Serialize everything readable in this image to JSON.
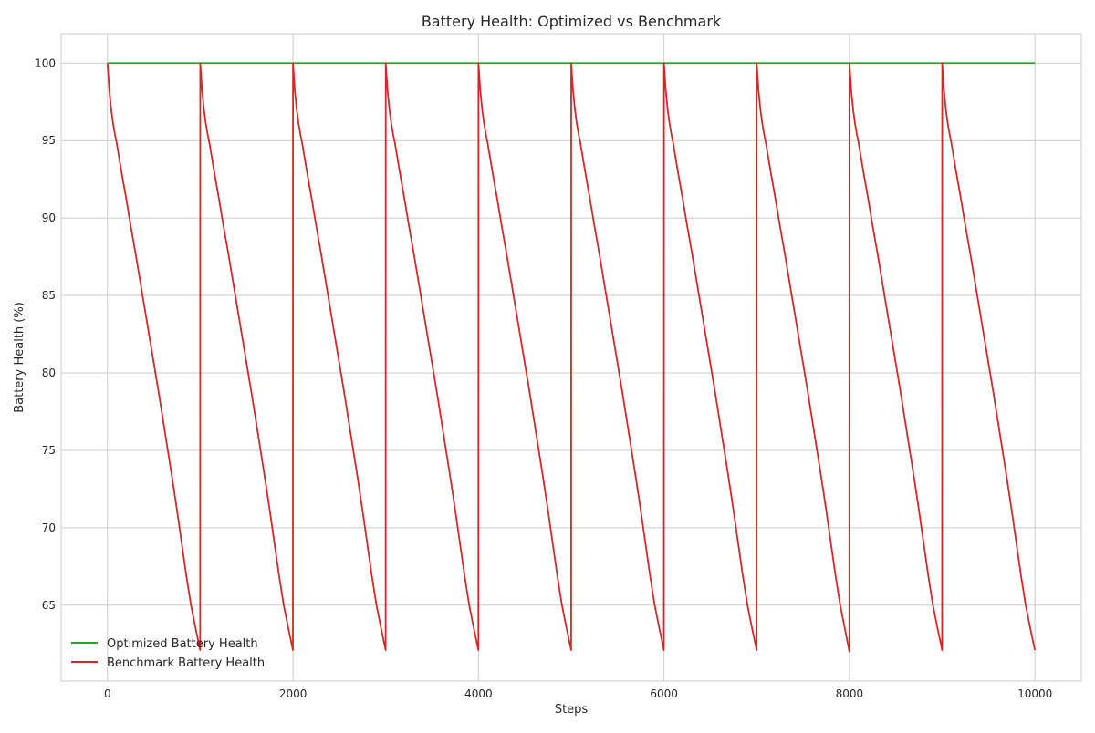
{
  "chart_data": {
    "type": "line",
    "title": "Battery Health: Optimized vs Benchmark",
    "xlabel": "Steps",
    "ylabel": "Battery Health (%)",
    "xlim": [
      -500,
      10500
    ],
    "ylim": [
      60.1,
      101.9
    ],
    "xticks": [
      0,
      2000,
      4000,
      6000,
      8000,
      10000
    ],
    "yticks": [
      65,
      70,
      75,
      80,
      85,
      90,
      95,
      100
    ],
    "grid": true,
    "legend_position": "lower-left",
    "series": [
      {
        "name": "Optimized Battery Health",
        "color": "#2ca02c",
        "x": [
          0,
          10000
        ],
        "y": [
          100,
          100
        ]
      },
      {
        "name": "Benchmark Battery Health",
        "color": "#d62728",
        "x": [
          0,
          20,
          40,
          60,
          80,
          100,
          150,
          200,
          250,
          300,
          350,
          400,
          450,
          500,
          550,
          600,
          650,
          700,
          750,
          800,
          850,
          900,
          950,
          999,
          1000,
          1020,
          1040,
          1060,
          1080,
          1100,
          1150,
          1200,
          1250,
          1300,
          1350,
          1400,
          1450,
          1500,
          1550,
          1600,
          1650,
          1700,
          1750,
          1800,
          1850,
          1900,
          1950,
          1999,
          2000,
          2020,
          2040,
          2060,
          2080,
          2100,
          2150,
          2200,
          2250,
          2300,
          2350,
          2400,
          2450,
          2500,
          2550,
          2600,
          2650,
          2700,
          2750,
          2800,
          2850,
          2900,
          2950,
          2999,
          3000,
          3020,
          3040,
          3060,
          3080,
          3100,
          3150,
          3200,
          3250,
          3300,
          3350,
          3400,
          3450,
          3500,
          3550,
          3600,
          3650,
          3700,
          3750,
          3800,
          3850,
          3900,
          3950,
          3999,
          4000,
          4020,
          4040,
          4060,
          4080,
          4100,
          4150,
          4200,
          4250,
          4300,
          4350,
          4400,
          4450,
          4500,
          4550,
          4600,
          4650,
          4700,
          4750,
          4800,
          4850,
          4900,
          4950,
          4999,
          5000,
          5020,
          5040,
          5060,
          5080,
          5100,
          5150,
          5200,
          5250,
          5300,
          5350,
          5400,
          5450,
          5500,
          5550,
          5600,
          5650,
          5700,
          5750,
          5800,
          5850,
          5900,
          5950,
          5999,
          6000,
          6020,
          6040,
          6060,
          6080,
          6100,
          6150,
          6200,
          6250,
          6300,
          6350,
          6400,
          6450,
          6500,
          6550,
          6600,
          6650,
          6700,
          6750,
          6800,
          6850,
          6900,
          6950,
          6999,
          7000,
          7020,
          7040,
          7060,
          7080,
          7100,
          7150,
          7200,
          7250,
          7300,
          7350,
          7400,
          7450,
          7500,
          7550,
          7600,
          7650,
          7700,
          7750,
          7800,
          7850,
          7900,
          7950,
          7999,
          8000,
          8020,
          8040,
          8060,
          8080,
          8100,
          8150,
          8200,
          8250,
          8300,
          8350,
          8400,
          8450,
          8500,
          8550,
          8600,
          8650,
          8700,
          8750,
          8800,
          8850,
          8900,
          8950,
          8999,
          9000,
          9020,
          9040,
          9060,
          9080,
          9100,
          9150,
          9200,
          9250,
          9300,
          9350,
          9400,
          9450,
          9500,
          9550,
          9600,
          9650,
          9700,
          9750,
          9800,
          9850,
          9900,
          9950,
          9999
        ],
        "y": [
          100,
          98.2,
          97.0,
          96.1,
          95.4,
          94.8,
          93.0,
          91.3,
          89.5,
          87.8,
          86.0,
          84.2,
          82.4,
          80.6,
          78.8,
          76.9,
          75.0,
          73.1,
          71.1,
          69.0,
          66.9,
          65.0,
          63.5,
          62.1,
          100,
          98.2,
          97.0,
          96.1,
          95.4,
          94.8,
          93.0,
          91.3,
          89.5,
          87.8,
          86.0,
          84.2,
          82.4,
          80.6,
          78.8,
          76.9,
          75.0,
          73.1,
          71.1,
          69.0,
          66.9,
          65.0,
          63.5,
          62.1,
          100,
          98.2,
          97.0,
          96.1,
          95.4,
          94.8,
          93.0,
          91.3,
          89.5,
          87.8,
          86.0,
          84.2,
          82.4,
          80.6,
          78.8,
          76.9,
          75.0,
          73.1,
          71.1,
          69.0,
          66.9,
          65.0,
          63.5,
          62.1,
          100,
          98.2,
          97.0,
          96.1,
          95.4,
          94.8,
          93.0,
          91.3,
          89.5,
          87.8,
          86.0,
          84.2,
          82.4,
          80.6,
          78.8,
          76.9,
          75.0,
          73.1,
          71.1,
          69.0,
          66.9,
          65.0,
          63.5,
          62.1,
          100,
          98.2,
          97.0,
          96.1,
          95.4,
          94.8,
          93.0,
          91.3,
          89.5,
          87.8,
          86.0,
          84.2,
          82.4,
          80.6,
          78.8,
          76.9,
          75.0,
          73.1,
          71.1,
          69.0,
          66.9,
          65.0,
          63.5,
          62.1,
          100,
          98.2,
          97.0,
          96.1,
          95.4,
          94.8,
          93.0,
          91.3,
          89.5,
          87.8,
          86.0,
          84.2,
          82.4,
          80.6,
          78.8,
          76.9,
          75.0,
          73.1,
          71.1,
          69.0,
          66.9,
          65.0,
          63.5,
          62.1,
          100,
          98.2,
          97.0,
          96.1,
          95.4,
          94.8,
          93.0,
          91.3,
          89.5,
          87.8,
          86.0,
          84.2,
          82.4,
          80.6,
          78.8,
          76.9,
          75.0,
          73.1,
          71.1,
          69.0,
          66.9,
          65.0,
          63.5,
          62.1,
          100,
          98.2,
          97.0,
          96.1,
          95.4,
          94.8,
          93.0,
          91.3,
          89.5,
          87.8,
          86.0,
          84.2,
          82.4,
          80.6,
          78.8,
          76.9,
          75.0,
          73.1,
          71.1,
          69.0,
          66.9,
          65.0,
          63.5,
          62.0,
          100,
          98.2,
          97.0,
          96.1,
          95.4,
          94.8,
          93.0,
          91.3,
          89.5,
          87.8,
          86.0,
          84.2,
          82.4,
          80.6,
          78.8,
          76.9,
          75.0,
          73.1,
          71.1,
          69.0,
          66.9,
          65.0,
          63.5,
          62.1,
          100,
          98.2,
          97.0,
          96.1,
          95.4,
          94.8,
          93.0,
          91.3,
          89.5,
          87.8,
          86.0,
          84.2,
          82.4,
          80.6,
          78.8,
          76.9,
          75.0,
          73.1,
          71.1,
          69.0,
          66.9,
          65.0,
          63.5,
          62.1
        ]
      }
    ]
  }
}
